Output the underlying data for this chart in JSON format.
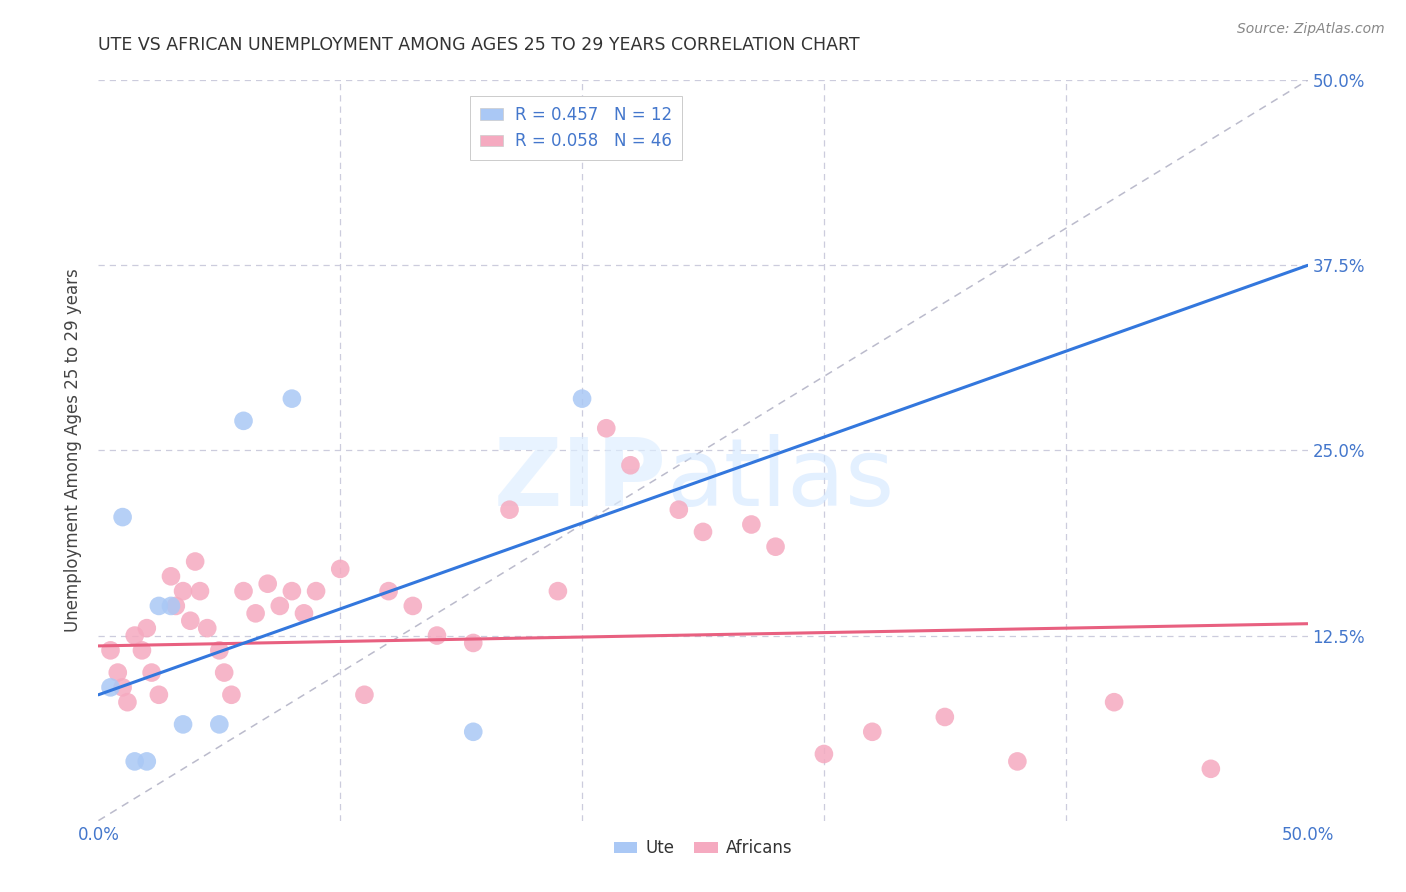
{
  "title": "UTE VS AFRICAN UNEMPLOYMENT AMONG AGES 25 TO 29 YEARS CORRELATION CHART",
  "source": "Source: ZipAtlas.com",
  "ylabel": "Unemployment Among Ages 25 to 29 years",
  "xlim": [
    0.0,
    0.5
  ],
  "ylim": [
    0.0,
    0.5
  ],
  "xtick_positions": [
    0.0,
    0.1,
    0.2,
    0.3,
    0.4,
    0.5
  ],
  "xtick_labels": [
    "0.0%",
    "",
    "",
    "",
    "",
    "50.0%"
  ],
  "ytick_positions": [
    0.0,
    0.125,
    0.25,
    0.375,
    0.5
  ],
  "ytick_labels_right": [
    "",
    "12.5%",
    "25.0%",
    "37.5%",
    "50.0%"
  ],
  "legend_label_ute": "R = 0.457   N = 12",
  "legend_label_african": "R = 0.058   N = 46",
  "bottom_legend_ute": "Ute",
  "bottom_legend_african": "Africans",
  "watermark_zip": "ZIP",
  "watermark_atlas": "atlas",
  "ute_color": "#aac8f5",
  "african_color": "#f5aac0",
  "ute_line_color": "#3377dd",
  "african_line_color": "#e86080",
  "diagonal_color": "#bbbbcc",
  "background_color": "#ffffff",
  "grid_color": "#ccccdd",
  "title_color": "#333333",
  "axis_tick_color": "#4477cc",
  "ylabel_color": "#444444",
  "source_color": "#888888",
  "ute_line_x0": 0.0,
  "ute_line_y0": 0.085,
  "ute_line_x1": 0.5,
  "ute_line_y1": 0.375,
  "african_line_x0": 0.0,
  "african_line_y0": 0.118,
  "african_line_x1": 0.5,
  "african_line_y1": 0.133,
  "ute_x": [
    0.005,
    0.01,
    0.015,
    0.02,
    0.025,
    0.03,
    0.035,
    0.05,
    0.06,
    0.08,
    0.155,
    0.2
  ],
  "ute_y": [
    0.09,
    0.205,
    0.04,
    0.04,
    0.145,
    0.145,
    0.065,
    0.065,
    0.27,
    0.285,
    0.06,
    0.285
  ],
  "african_x": [
    0.005,
    0.008,
    0.01,
    0.012,
    0.015,
    0.018,
    0.02,
    0.022,
    0.025,
    0.03,
    0.032,
    0.035,
    0.038,
    0.04,
    0.042,
    0.045,
    0.05,
    0.052,
    0.055,
    0.06,
    0.065,
    0.07,
    0.075,
    0.08,
    0.085,
    0.09,
    0.1,
    0.11,
    0.12,
    0.13,
    0.14,
    0.155,
    0.17,
    0.19,
    0.21,
    0.22,
    0.24,
    0.25,
    0.27,
    0.28,
    0.3,
    0.32,
    0.35,
    0.38,
    0.42,
    0.46
  ],
  "african_y": [
    0.115,
    0.1,
    0.09,
    0.08,
    0.125,
    0.115,
    0.13,
    0.1,
    0.085,
    0.165,
    0.145,
    0.155,
    0.135,
    0.175,
    0.155,
    0.13,
    0.115,
    0.1,
    0.085,
    0.155,
    0.14,
    0.16,
    0.145,
    0.155,
    0.14,
    0.155,
    0.17,
    0.085,
    0.155,
    0.145,
    0.125,
    0.12,
    0.21,
    0.155,
    0.265,
    0.24,
    0.21,
    0.195,
    0.2,
    0.185,
    0.045,
    0.06,
    0.07,
    0.04,
    0.08,
    0.035
  ],
  "marker_size": 180
}
